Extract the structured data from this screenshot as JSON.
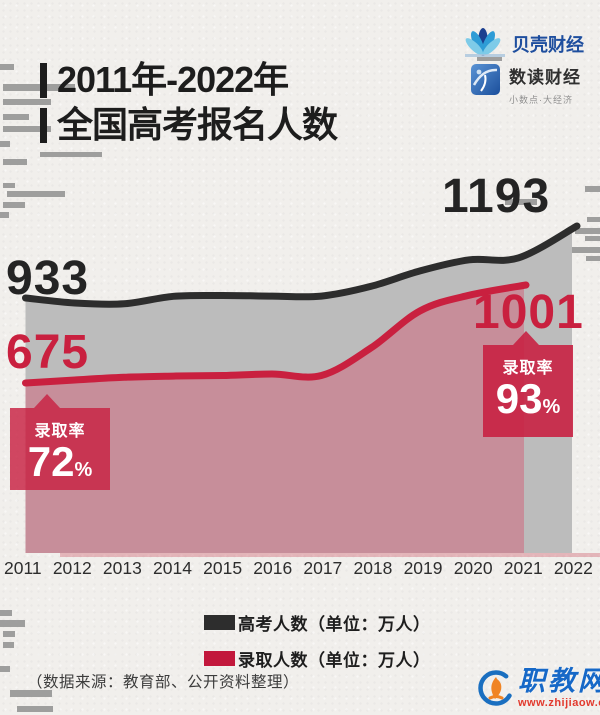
{
  "header": {
    "title_line1": "2011年-2022年",
    "title_line2": "全国高考报名人数",
    "logos": [
      {
        "name": "贝壳财经"
      },
      {
        "name": "数读财经",
        "tagline": "小数点·大经济"
      }
    ]
  },
  "chart_data": {
    "type": "line",
    "unit": "万人",
    "grid": false,
    "x": [
      2011,
      2012,
      2013,
      2014,
      2015,
      2016,
      2017,
      2018,
      2019,
      2020,
      2021,
      2022
    ],
    "series": [
      {
        "name": "高考人数",
        "color": "#2d2d2d",
        "area_color": "#bcbcbc",
        "values": [
          933,
          915,
          912,
          939,
          942,
          940,
          940,
          975,
          1031,
          1071,
          1078,
          1193
        ]
      },
      {
        "name": "录取人数",
        "color": "#c9203f",
        "area_color": "#c78e9a",
        "values": [
          675,
          685,
          694,
          698,
          700,
          705,
          700,
          791,
          915,
          967,
          1001
        ]
      }
    ],
    "point_labels": {
      "black_start": "933",
      "black_end": "1193",
      "red_start": "675",
      "red_end": "1001"
    },
    "callouts": [
      {
        "label": "录取率",
        "value": "72",
        "suffix": "%"
      },
      {
        "label": "录取率",
        "value": "93",
        "suffix": "%"
      }
    ],
    "legend": [
      {
        "label": "高考人数（单位：万人）",
        "color": "#2d2d2d"
      },
      {
        "label": "录取人数（单位：万人）",
        "color": "#c2183c"
      }
    ],
    "ylim": [
      600,
      1250
    ]
  },
  "footer": {
    "source": "（数据来源：教育部、公开资料整理）",
    "watermark": {
      "site": "职教网",
      "url": "www.zhijiaow.com"
    }
  },
  "colors": {
    "accent_red": "#c9203f",
    "ink_black": "#2d2d2d",
    "paper": "#f1efec"
  }
}
